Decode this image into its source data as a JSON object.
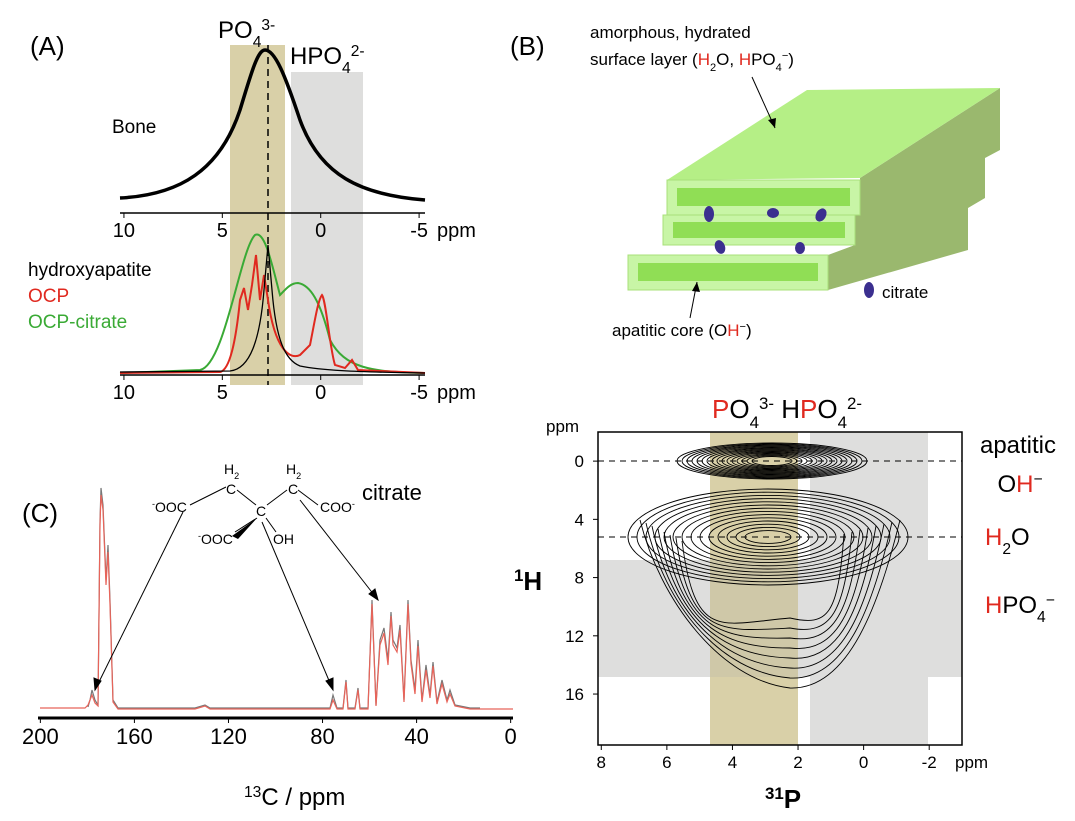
{
  "panel_a": {
    "label": "(A)",
    "po4": [
      "PO",
      "4",
      "3-"
    ],
    "hpo4": [
      "HPO",
      "4",
      "2-"
    ],
    "bone": "Bone",
    "xticks": [
      10,
      5,
      0,
      -5
    ],
    "xlim": [
      10.2,
      -5.3
    ],
    "unit": "ppm",
    "legend": [
      "hydroxyapatite",
      "OCP",
      "OCP-citrate"
    ]
  },
  "panel_b": {
    "label": "(B)",
    "surface_line1": "amorphous, hydrated",
    "surface_line2": [
      "surface layer (",
      "H",
      "2",
      "O, ",
      "H",
      "PO",
      "4",
      "−",
      ")"
    ],
    "core": [
      "apatitic core (O",
      "H",
      "−",
      ")"
    ],
    "citrate": "citrate",
    "title": [
      "P",
      "O",
      "4",
      "3-",
      " H",
      "P",
      "O",
      "4",
      "2-"
    ],
    "y_unit": "ppm",
    "x_unit": "ppm",
    "xticks": [
      8,
      6,
      4,
      2,
      0,
      -2
    ],
    "xlim": [
      8.1,
      -3
    ],
    "yticks": [
      0,
      4,
      8,
      12,
      16
    ],
    "ylim": [
      -2,
      19.5
    ],
    "y_label": [
      "1",
      "H"
    ],
    "x_label": [
      "31",
      "P"
    ],
    "apatitic": "apatitic",
    "oh": [
      "O",
      "H",
      "−"
    ],
    "h2o": [
      "H",
      "2",
      "O"
    ],
    "hpo4": [
      "H",
      "PO",
      "4",
      "−"
    ]
  },
  "panel_c": {
    "label": "(C)",
    "xticks": [
      200,
      160,
      120,
      80,
      40,
      0
    ],
    "xlim": [
      201,
      -1
    ],
    "x_label": [
      "13",
      "C / ppm"
    ],
    "citrate": "citrate",
    "structure": {
      "h2_left": [
        "H",
        "2"
      ],
      "h2_right": [
        "H",
        "2"
      ],
      "c_left": "C",
      "c_mid": "C",
      "c_right": "C",
      "ooc_left": [
        "-",
        "OOC"
      ],
      "coo_right": [
        "COO",
        "-"
      ],
      "ooc_low": [
        "-",
        "OOC"
      ],
      "oh": "OH"
    }
  }
}
